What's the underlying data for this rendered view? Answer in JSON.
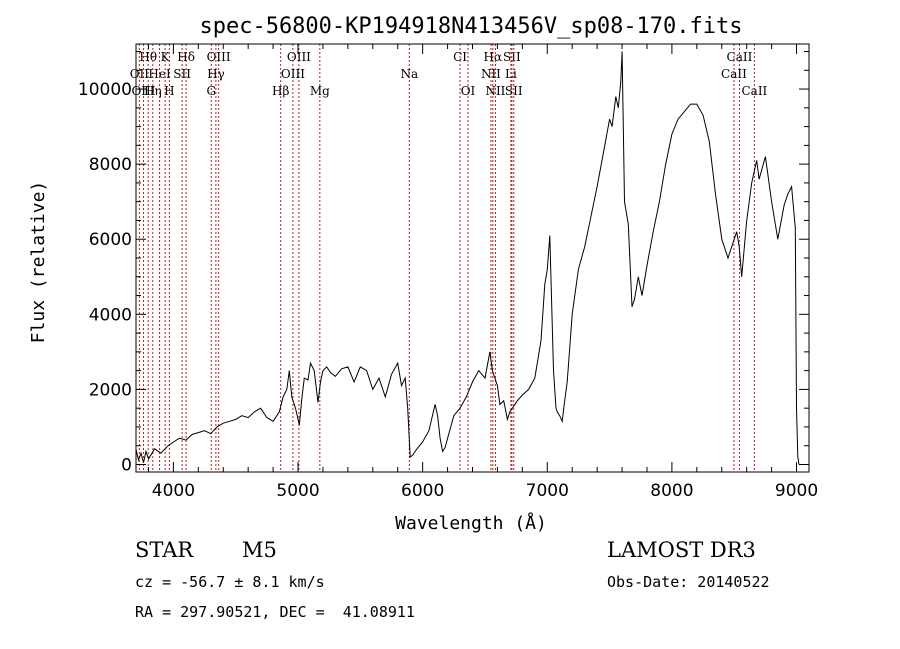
{
  "info": {
    "object_class": "STAR",
    "subclass": "M5",
    "survey": "LAMOST DR3",
    "cz": "cz = -56.7 ± 8.1 km/s",
    "obs_date": "Obs-Date: 20140522",
    "coords": "RA = 297.90521, DEC =  41.08911"
  },
  "colors": {
    "spectrum": "#000000",
    "lines": "#b22222",
    "axis": "#000000"
  },
  "chart_data": {
    "type": "line",
    "title": "spec-56800-KP194918N413456V_sp08-170.fits",
    "xlabel": "Wavelength (Å)",
    "ylabel": "Flux (relative)",
    "xlim": [
      3700,
      9100
    ],
    "ylim": [
      -200,
      11200
    ],
    "xticks": [
      4000,
      5000,
      6000,
      7000,
      8000,
      9000
    ],
    "yticks": [
      0,
      2000,
      4000,
      6000,
      8000,
      10000
    ],
    "series": [
      {
        "name": "flux",
        "x": [
          3700,
          3720,
          3740,
          3760,
          3780,
          3800,
          3850,
          3900,
          3950,
          4000,
          4050,
          4100,
          4150,
          4200,
          4250,
          4300,
          4350,
          4400,
          4450,
          4500,
          4550,
          4600,
          4650,
          4700,
          4750,
          4800,
          4850,
          4880,
          4910,
          4930,
          4950,
          4980,
          5010,
          5030,
          5050,
          5080,
          5100,
          5130,
          5160,
          5180,
          5200,
          5230,
          5260,
          5300,
          5350,
          5400,
          5450,
          5500,
          5550,
          5600,
          5650,
          5700,
          5750,
          5800,
          5830,
          5860,
          5880,
          5900,
          5920,
          5950,
          6000,
          6050,
          6100,
          6120,
          6140,
          6160,
          6180,
          6200,
          6250,
          6300,
          6350,
          6400,
          6450,
          6500,
          6540,
          6560,
          6580,
          6600,
          6620,
          6650,
          6680,
          6700,
          6730,
          6760,
          6800,
          6850,
          6900,
          6950,
          6980,
          7000,
          7020,
          7050,
          7070,
          7080,
          7100,
          7120,
          7140,
          7160,
          7200,
          7250,
          7300,
          7350,
          7400,
          7450,
          7500,
          7520,
          7550,
          7570,
          7590,
          7600,
          7620,
          7650,
          7680,
          7700,
          7730,
          7760,
          7800,
          7850,
          7900,
          7950,
          8000,
          8050,
          8100,
          8150,
          8200,
          8250,
          8300,
          8350,
          8400,
          8450,
          8500,
          8520,
          8540,
          8560,
          8600,
          8640,
          8660,
          8680,
          8700,
          8750,
          8800,
          8850,
          8900,
          8930,
          8960,
          8990,
          9000,
          9010,
          9020
        ],
        "values": [
          400,
          120,
          300,
          50,
          350,
          150,
          420,
          300,
          480,
          600,
          700,
          650,
          800,
          850,
          900,
          820,
          1000,
          1100,
          1150,
          1200,
          1300,
          1250,
          1400,
          1500,
          1250,
          1150,
          1400,
          1800,
          2000,
          2500,
          1800,
          1500,
          1050,
          1750,
          2300,
          2250,
          2700,
          2500,
          1650,
          2200,
          2500,
          2600,
          2450,
          2350,
          2550,
          2600,
          2200,
          2600,
          2500,
          2000,
          2300,
          1800,
          2400,
          2700,
          2100,
          2300,
          1500,
          200,
          250,
          400,
          600,
          900,
          1600,
          1300,
          700,
          350,
          450,
          700,
          1300,
          1500,
          1800,
          2200,
          2500,
          2300,
          3000,
          2500,
          2300,
          2100,
          1600,
          1700,
          1200,
          1400,
          1550,
          1700,
          1850,
          2000,
          2300,
          3300,
          4800,
          5200,
          6100,
          2500,
          1500,
          1400,
          1300,
          1150,
          1700,
          2200,
          4000,
          5200,
          5800,
          6600,
          7400,
          8300,
          9200,
          9000,
          9800,
          9500,
          10200,
          11000,
          7000,
          6400,
          4200,
          4400,
          5000,
          4500,
          5300,
          6200,
          7000,
          8000,
          8800,
          9200,
          9400,
          9600,
          9600,
          9300,
          8600,
          7200,
          6000,
          5500,
          6000,
          6200,
          5800,
          5000,
          6500,
          7500,
          7800,
          8100,
          7600,
          8200,
          7000,
          6000,
          6900,
          7200,
          7400,
          6300,
          1500,
          200,
          0
        ]
      }
    ],
    "emission_lines": [
      {
        "label": "Hθ",
        "wave": 3798,
        "row": 1
      },
      {
        "label": "OII",
        "wave": 3727,
        "row": 2
      },
      {
        "label": "OIII",
        "wave": 3760,
        "row": 3
      },
      {
        "label": "Hη",
        "wave": 3835,
        "row": 3
      },
      {
        "label": "HeI",
        "wave": 3889,
        "row": 2
      },
      {
        "label": "K",
        "wave": 3934,
        "row": 1
      },
      {
        "label": "SII",
        "wave": 4070,
        "row": 2
      },
      {
        "label": "H",
        "wave": 3968,
        "row": 3
      },
      {
        "label": "Hδ",
        "wave": 4102,
        "row": 1
      },
      {
        "label": "OIII",
        "wave": 4363,
        "row": 1
      },
      {
        "label": "Hγ",
        "wave": 4341,
        "row": 2
      },
      {
        "label": "G",
        "wave": 4304,
        "row": 3
      },
      {
        "label": "OIII",
        "wave": 5007,
        "row": 1
      },
      {
        "label": "OIII",
        "wave": 4959,
        "row": 2
      },
      {
        "label": "Hβ",
        "wave": 4861,
        "row": 3
      },
      {
        "label": "Mg",
        "wave": 5175,
        "row": 3
      },
      {
        "label": "Na",
        "wave": 5893,
        "row": 2
      },
      {
        "label": "CI",
        "wave": 6300,
        "row": 1
      },
      {
        "label": "OI",
        "wave": 6364,
        "row": 3
      },
      {
        "label": "Hα",
        "wave": 6563,
        "row": 1
      },
      {
        "label": "SII",
        "wave": 6716,
        "row": 1
      },
      {
        "label": "NII",
        "wave": 6548,
        "row": 2
      },
      {
        "label": "Li",
        "wave": 6708,
        "row": 2
      },
      {
        "label": "NII",
        "wave": 6584,
        "row": 3
      },
      {
        "label": "SII",
        "wave": 6731,
        "row": 3
      },
      {
        "label": "CaII",
        "wave": 8542,
        "row": 1
      },
      {
        "label": "CaII",
        "wave": 8498,
        "row": 2
      },
      {
        "label": "CaII",
        "wave": 8662,
        "row": 3
      }
    ]
  }
}
